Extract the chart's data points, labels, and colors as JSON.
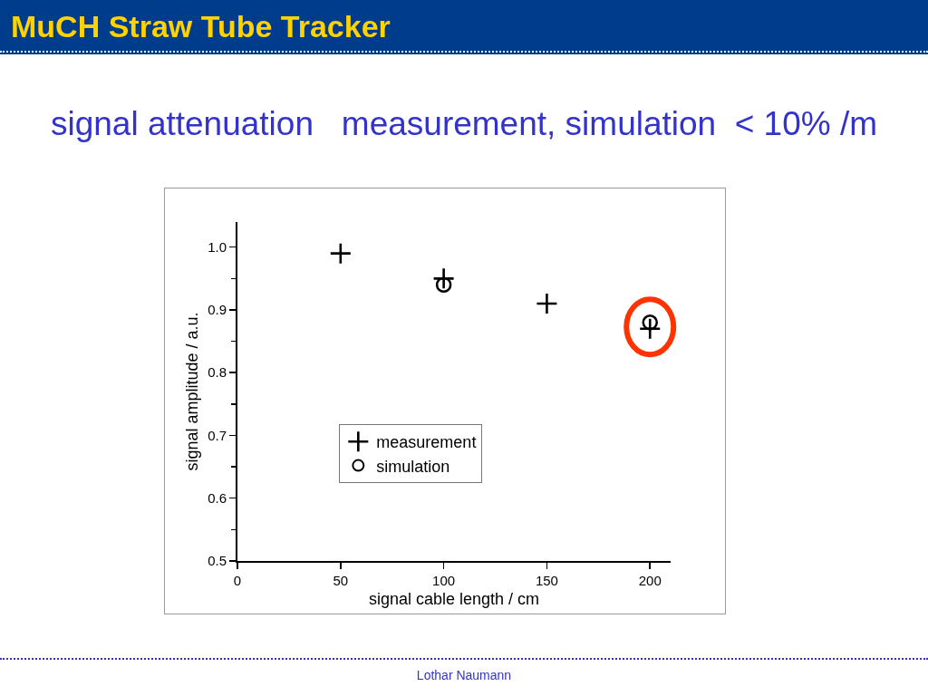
{
  "chart_data": {
    "type": "scatter",
    "title": "MuCH Straw Tube Tracker",
    "subtitle": "signal attenuation   measurement, simulation  < 10% /m",
    "xlabel": "signal cable length / cm",
    "ylabel": "signal amplitude / a.u.",
    "annotations": [
      "Lothar Naumann"
    ],
    "series": [
      {
        "name": "measurement",
        "color": "#000000",
        "marker": "cross",
        "x": [
          50,
          100,
          150,
          200
        ],
        "values": [
          0.99,
          0.95,
          0.91,
          0.87
        ]
      },
      {
        "name": "simulation",
        "color": "#000000",
        "marker": "circle",
        "x": [
          100,
          200
        ],
        "values": [
          0.94,
          0.88
        ]
      }
    ],
    "xlim": [
      0,
      210
    ],
    "xticks": [
      0,
      50,
      100,
      150,
      200
    ],
    "ylim": [
      0.5,
      1.04
    ],
    "yticks": [
      0.5,
      {
        "value": 0.55,
        "label": null
      },
      0.6,
      {
        "value": 0.65,
        "label": null
      },
      0.7,
      {
        "value": 0.75,
        "label": null
      },
      0.8,
      {
        "value": 0.85,
        "label": null
      },
      0.9,
      {
        "value": 0.95,
        "label": null
      },
      {
        "value": 1.0,
        "label": "1.0"
      }
    ],
    "grid": false,
    "legend": "bottom left"
  }
}
